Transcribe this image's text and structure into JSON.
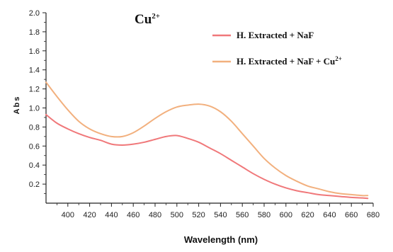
{
  "chart_data": {
    "type": "line",
    "title_main": "Cu",
    "title_superscript": "2+",
    "xlabel": "Wavelength (nm)",
    "ylabel": "Abs",
    "xlim": [
      380,
      680
    ],
    "ylim": [
      0,
      2.0
    ],
    "x_ticks": [
      400,
      420,
      440,
      460,
      480,
      500,
      520,
      540,
      560,
      580,
      600,
      620,
      640,
      660,
      680
    ],
    "y_ticks": [
      0.2,
      0.4,
      0.6,
      0.8,
      1.0,
      1.2,
      1.4,
      1.6,
      1.8,
      2.0
    ],
    "y_tick_labels": [
      "0.2",
      "0.4",
      "0.6",
      "0.8",
      "1.0",
      "1.2",
      "1.4",
      "1.6",
      "1.8",
      "2.0"
    ],
    "grid": false,
    "legend_position": "top-right",
    "series": [
      {
        "name": "H. Extracted  + NaF",
        "name_suffix_superscript": "",
        "color": "#f0787a",
        "x": [
          380,
          390,
          400,
          410,
          420,
          430,
          440,
          450,
          460,
          470,
          480,
          490,
          500,
          510,
          520,
          530,
          540,
          550,
          560,
          570,
          580,
          590,
          600,
          610,
          620,
          630,
          640,
          650,
          660,
          670,
          675
        ],
        "y": [
          0.93,
          0.84,
          0.78,
          0.73,
          0.69,
          0.66,
          0.62,
          0.61,
          0.62,
          0.64,
          0.67,
          0.7,
          0.71,
          0.68,
          0.64,
          0.58,
          0.52,
          0.45,
          0.38,
          0.31,
          0.25,
          0.2,
          0.16,
          0.13,
          0.11,
          0.09,
          0.08,
          0.07,
          0.06,
          0.055,
          0.05
        ]
      },
      {
        "name": "H. Extracted  + NaF + Cu",
        "name_suffix_superscript": "2+",
        "color": "#f2b07e",
        "x": [
          380,
          390,
          400,
          410,
          420,
          430,
          440,
          450,
          460,
          470,
          480,
          490,
          500,
          510,
          520,
          530,
          540,
          550,
          560,
          570,
          580,
          590,
          600,
          610,
          620,
          630,
          640,
          650,
          660,
          670,
          675
        ],
        "y": [
          1.27,
          1.12,
          0.98,
          0.86,
          0.78,
          0.73,
          0.7,
          0.7,
          0.74,
          0.81,
          0.89,
          0.96,
          1.01,
          1.03,
          1.04,
          1.02,
          0.96,
          0.86,
          0.73,
          0.6,
          0.47,
          0.37,
          0.29,
          0.23,
          0.18,
          0.15,
          0.12,
          0.1,
          0.09,
          0.08,
          0.08
        ]
      }
    ]
  }
}
